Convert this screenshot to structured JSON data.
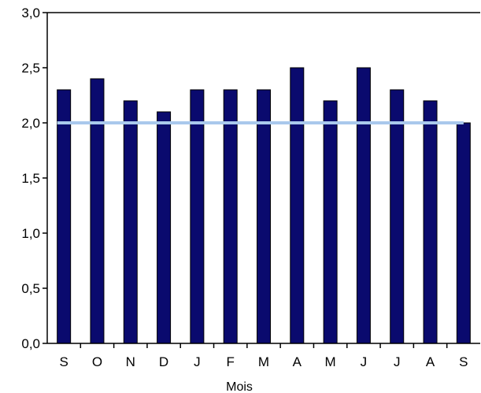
{
  "chart_data": {
    "type": "bar",
    "categories": [
      "S",
      "O",
      "N",
      "D",
      "J",
      "F",
      "M",
      "A",
      "M",
      "J",
      "J",
      "A",
      "S"
    ],
    "series": [
      {
        "values": [
          2.3,
          2.4,
          2.2,
          2.1,
          2.3,
          2.3,
          2.3,
          2.5,
          2.2,
          2.5,
          2.3,
          2.2,
          2.0
        ]
      }
    ],
    "reference_line": {
      "value": 2.0
    },
    "ylim": [
      0,
      3
    ],
    "yticks": [
      0,
      0.5,
      1.0,
      1.5,
      2.0,
      2.5,
      3.0
    ],
    "ytick_labels": [
      "0,0",
      "0,5",
      "1,0",
      "1,5",
      "2,0",
      "2,5",
      "3,0"
    ],
    "xlabel": "Mois",
    "ylabel": "",
    "title": "",
    "grid": false,
    "legend": "none",
    "colors": {
      "bar_fill": "#0a0a6e",
      "bar_edge": "#000000",
      "reference_line": "#a9c8ec",
      "axis": "#000000"
    }
  }
}
